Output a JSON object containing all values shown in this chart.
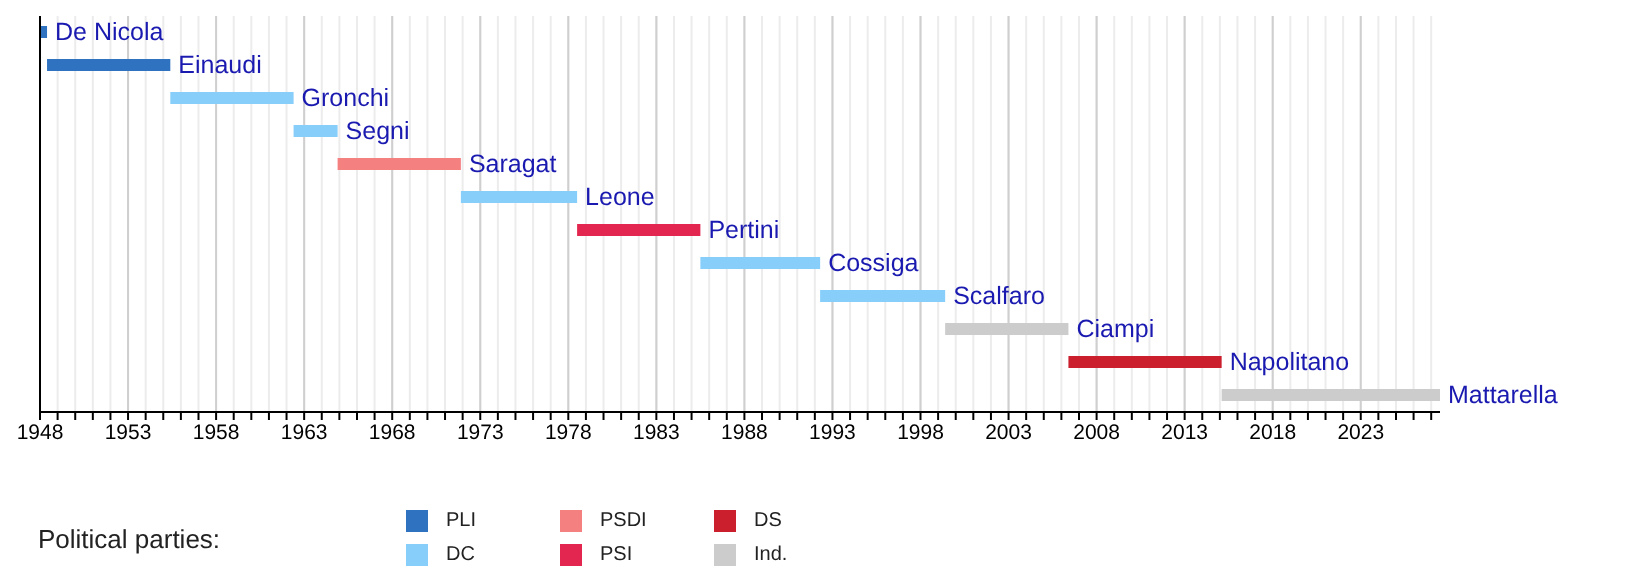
{
  "chart_data": {
    "type": "bar",
    "orientation": "horizontal",
    "categories": [
      null,
      null,
      null,
      null,
      null,
      null,
      null,
      null,
      null,
      null,
      null,
      null
    ],
    "series": [
      {
        "name": "PLI",
        "color": "#2f72c0",
        "base": [
          1948.0,
          1948.4,
          null,
          null,
          null,
          null,
          null,
          null,
          null,
          null,
          null,
          null
        ],
        "values": [
          0.4,
          7.0,
          null,
          null,
          null,
          null,
          null,
          null,
          null,
          null,
          null,
          null
        ],
        "value_labels": [
          "De Nicola",
          "Einaudi",
          null,
          null,
          null,
          null,
          null,
          null,
          null,
          null,
          null,
          null
        ]
      },
      {
        "name": "DC",
        "color": "#87cefa",
        "base": [
          null,
          null,
          1955.4,
          1962.4,
          null,
          1971.9,
          null,
          1985.5,
          1992.3,
          null,
          null,
          null
        ],
        "values": [
          null,
          null,
          7.0,
          2.5,
          null,
          6.6,
          null,
          6.8,
          7.1,
          null,
          null,
          null
        ],
        "value_labels": [
          null,
          null,
          "Gronchi",
          "Segni",
          null,
          "Leone",
          null,
          "Cossiga",
          "Scalfaro",
          null,
          null,
          null
        ]
      },
      {
        "name": "PSDI",
        "color": "#f58080",
        "base": [
          null,
          null,
          null,
          null,
          1964.9,
          null,
          null,
          null,
          null,
          null,
          null,
          null
        ],
        "values": [
          null,
          null,
          null,
          null,
          7.0,
          null,
          null,
          null,
          null,
          null,
          null,
          null
        ],
        "value_labels": [
          null,
          null,
          null,
          null,
          "Saragat",
          null,
          null,
          null,
          null,
          null,
          null,
          null
        ]
      },
      {
        "name": "PSI",
        "color": "#e2264f",
        "base": [
          null,
          null,
          null,
          null,
          null,
          null,
          1978.5,
          null,
          null,
          null,
          null,
          null
        ],
        "values": [
          null,
          null,
          null,
          null,
          null,
          null,
          7.0,
          null,
          null,
          null,
          null,
          null
        ],
        "value_labels": [
          null,
          null,
          null,
          null,
          null,
          null,
          "Pertini",
          null,
          null,
          null,
          null,
          null
        ]
      },
      {
        "name": "DS",
        "color": "#cc1f2e",
        "base": [
          null,
          null,
          null,
          null,
          null,
          null,
          null,
          null,
          null,
          null,
          2006.4,
          null
        ],
        "values": [
          null,
          null,
          null,
          null,
          null,
          null,
          null,
          null,
          null,
          null,
          8.7,
          null
        ],
        "value_labels": [
          null,
          null,
          null,
          null,
          null,
          null,
          null,
          null,
          null,
          null,
          "Napolitano",
          null
        ]
      },
      {
        "name": "Ind.",
        "color": "#cccccc",
        "base": [
          null,
          null,
          null,
          null,
          null,
          null,
          null,
          null,
          null,
          1999.4,
          null,
          2015.1
        ],
        "values": [
          null,
          null,
          null,
          null,
          null,
          null,
          null,
          null,
          null,
          7.0,
          null,
          12.4
        ],
        "value_labels": [
          null,
          null,
          null,
          null,
          null,
          null,
          null,
          null,
          null,
          "Ciampi",
          null,
          "Mattarella"
        ]
      }
    ],
    "xlim": [
      1948,
      2027.5
    ],
    "xticks": [
      1948,
      {
        "value": 1949,
        "label": null
      },
      {
        "value": 1950,
        "label": null
      },
      {
        "value": 1951,
        "label": null
      },
      {
        "value": 1952,
        "label": null
      },
      1953,
      {
        "value": 1954,
        "label": null
      },
      {
        "value": 1955,
        "label": null
      },
      {
        "value": 1956,
        "label": null
      },
      {
        "value": 1957,
        "label": null
      },
      1958,
      {
        "value": 1959,
        "label": null
      },
      {
        "value": 1960,
        "label": null
      },
      {
        "value": 1961,
        "label": null
      },
      {
        "value": 1962,
        "label": null
      },
      1963,
      {
        "value": 1964,
        "label": null
      },
      {
        "value": 1965,
        "label": null
      },
      {
        "value": 1966,
        "label": null
      },
      {
        "value": 1967,
        "label": null
      },
      1968,
      {
        "value": 1969,
        "label": null
      },
      {
        "value": 1970,
        "label": null
      },
      {
        "value": 1971,
        "label": null
      },
      {
        "value": 1972,
        "label": null
      },
      1973,
      {
        "value": 1974,
        "label": null
      },
      {
        "value": 1975,
        "label": null
      },
      {
        "value": 1976,
        "label": null
      },
      {
        "value": 1977,
        "label": null
      },
      1978,
      {
        "value": 1979,
        "label": null
      },
      {
        "value": 1980,
        "label": null
      },
      {
        "value": 1981,
        "label": null
      },
      {
        "value": 1982,
        "label": null
      },
      1983,
      {
        "value": 1984,
        "label": null
      },
      {
        "value": 1985,
        "label": null
      },
      {
        "value": 1986,
        "label": null
      },
      {
        "value": 1987,
        "label": null
      },
      1988,
      {
        "value": 1989,
        "label": null
      },
      {
        "value": 1990,
        "label": null
      },
      {
        "value": 1991,
        "label": null
      },
      {
        "value": 1992,
        "label": null
      },
      1993,
      {
        "value": 1994,
        "label": null
      },
      {
        "value": 1995,
        "label": null
      },
      {
        "value": 1996,
        "label": null
      },
      {
        "value": 1997,
        "label": null
      },
      1998,
      {
        "value": 1999,
        "label": null
      },
      {
        "value": 2000,
        "label": null
      },
      {
        "value": 2001,
        "label": null
      },
      {
        "value": 2002,
        "label": null
      },
      2003,
      {
        "value": 2004,
        "label": null
      },
      {
        "value": 2005,
        "label": null
      },
      {
        "value": 2006,
        "label": null
      },
      {
        "value": 2007,
        "label": null
      },
      2008,
      {
        "value": 2009,
        "label": null
      },
      {
        "value": 2010,
        "label": null
      },
      {
        "value": 2011,
        "label": null
      },
      {
        "value": 2012,
        "label": null
      },
      2013,
      {
        "value": 2014,
        "label": null
      },
      {
        "value": 2015,
        "label": null
      },
      {
        "value": 2016,
        "label": null
      },
      {
        "value": 2017,
        "label": null
      },
      2018,
      {
        "value": 2019,
        "label": null
      },
      {
        "value": 2020,
        "label": null
      },
      {
        "value": 2021,
        "label": null
      },
      {
        "value": 2022,
        "label": null
      },
      2023,
      {
        "value": 2024,
        "label": null
      },
      {
        "value": 2025,
        "label": null
      },
      {
        "value": 2026,
        "label": null
      },
      {
        "value": 2027,
        "label": null
      }
    ],
    "grid": "x",
    "legend": "bottom",
    "legend_title": "Political parties:"
  }
}
